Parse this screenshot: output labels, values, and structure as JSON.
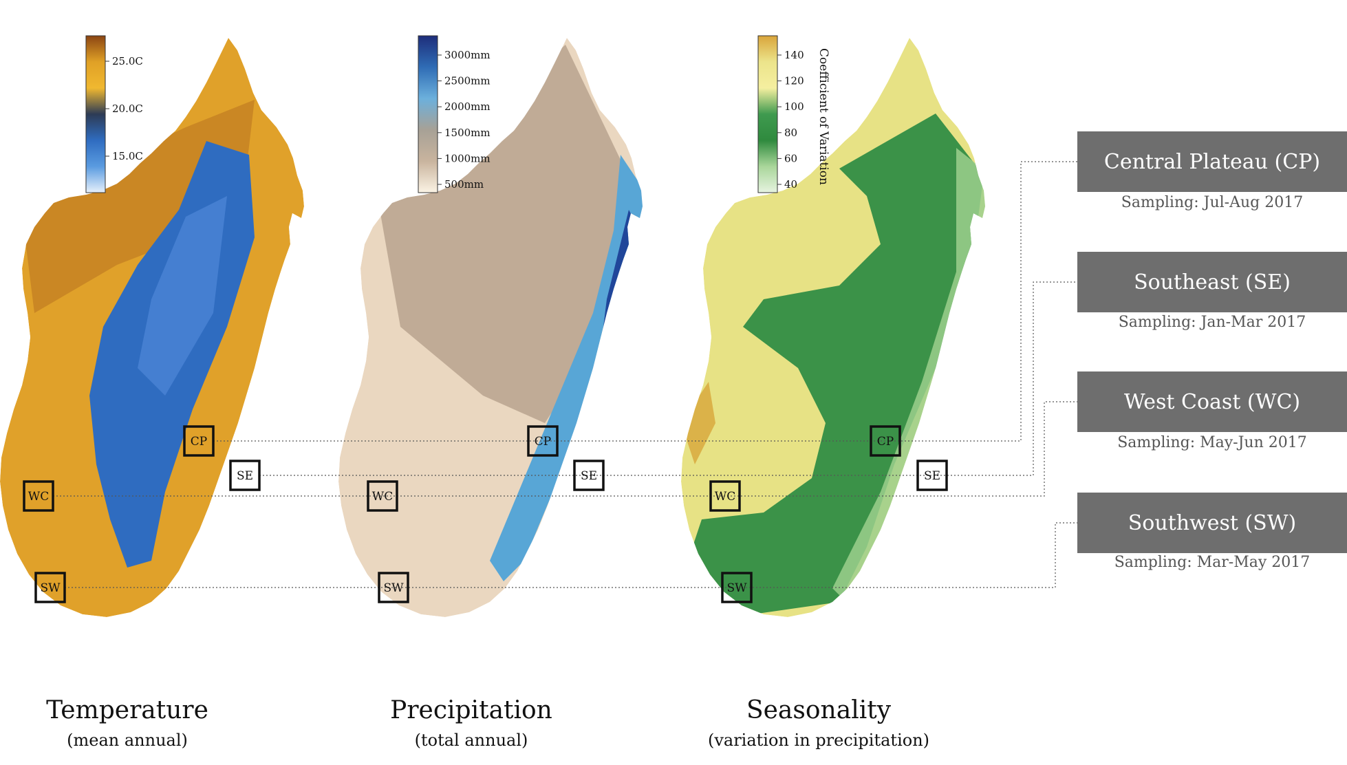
{
  "maps": [
    {
      "id": "temperature",
      "title": "Temperature",
      "subtitle": "(mean annual)",
      "legend": {
        "ticks": [
          "25.0C",
          "20.0C",
          "15.0C"
        ],
        "colors": [
          "#8b4513",
          "#e0a126",
          "#f0b830",
          "#2d3b55",
          "#2f6cc0",
          "#5a9be0",
          "#e6f0fb"
        ]
      },
      "fill_colors": {
        "coast": "#e0a12a",
        "north": "#b8731f",
        "highland": "#2f6cc0",
        "highland_light": "#4f88d8"
      }
    },
    {
      "id": "precipitation",
      "title": "Precipitation",
      "subtitle": "(total annual)",
      "legend": {
        "ticks": [
          "3000mm",
          "2500mm",
          "2000mm",
          "1500mm",
          "1000mm",
          "500mm"
        ],
        "colors": [
          "#1e2d7a",
          "#2f6cb5",
          "#6cb0dc",
          "#a7a196",
          "#c9b49e",
          "#fbf3e4"
        ]
      },
      "fill_colors": {
        "dry": "#ead7c0",
        "mid": "#b8a38e",
        "wet": "#58a6d6",
        "wettest": "#20469a"
      }
    },
    {
      "id": "seasonality",
      "title": "Seasonality",
      "subtitle": "(variation in precipitation)",
      "legend": {
        "ticks": [
          "140",
          "120",
          "100",
          "80",
          "60",
          "40"
        ],
        "title": "Coefficient of Variation",
        "colors": [
          "#d9a43a",
          "#ece48b",
          "#f5efa0",
          "#3f9a4f",
          "#2f8a3e",
          "#a9d69a",
          "#e6f3e0"
        ]
      },
      "fill_colors": {
        "yellow": "#e7e285",
        "green": "#3b9248",
        "light_green": "#9ccf8d",
        "orange": "#d8a63a"
      }
    }
  ],
  "sites": [
    {
      "code": "CP",
      "name": "Central Plateau (CP)",
      "sampling": "Sampling: Jul-Aug 2017"
    },
    {
      "code": "SE",
      "name": "Southeast (SE)",
      "sampling": "Sampling: Jan-Mar 2017"
    },
    {
      "code": "WC",
      "name": "West Coast (WC)",
      "sampling": "Sampling: May-Jun 2017"
    },
    {
      "code": "SW",
      "name": "Southwest (SW)",
      "sampling": "Sampling: Mar-May 2017"
    }
  ]
}
